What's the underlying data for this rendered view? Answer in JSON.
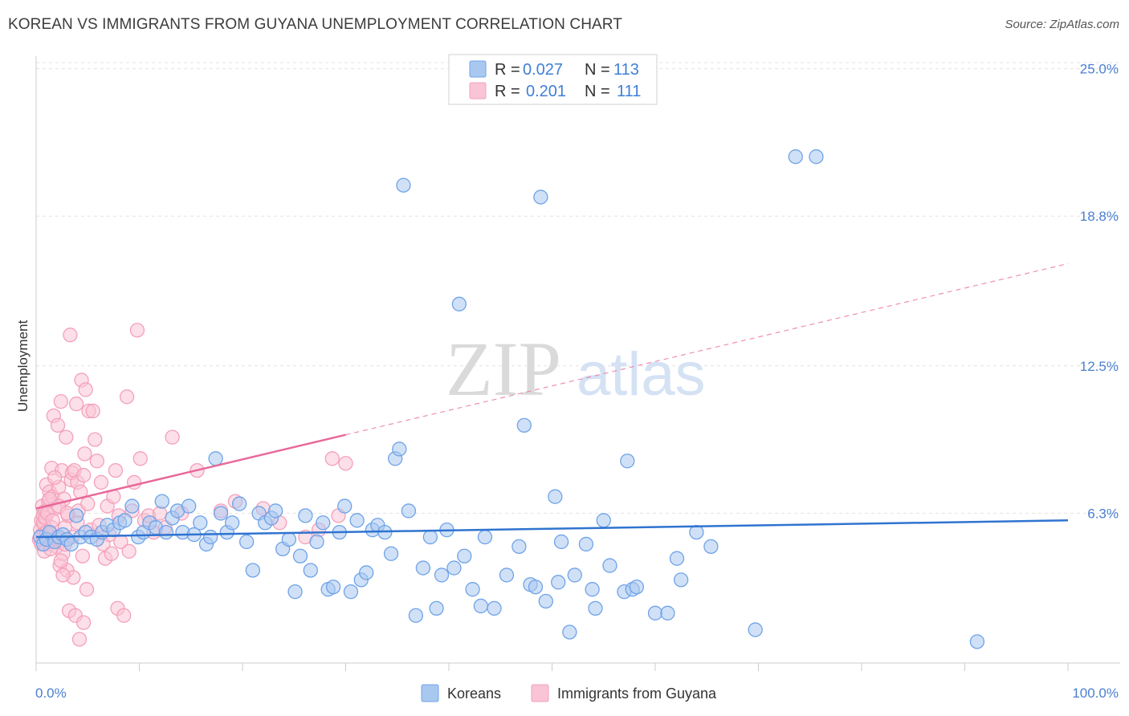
{
  "title": "KOREAN VS IMMIGRANTS FROM GUYANA UNEMPLOYMENT CORRELATION CHART",
  "source": "Source: ZipAtlas.com",
  "watermark": {
    "zip": "ZIP",
    "atlas": "atlas"
  },
  "legend": {
    "r_label": "R =",
    "n_label": "N =",
    "rows": [
      {
        "r": "0.027",
        "n": "113"
      },
      {
        "r": "0.201",
        "n": "111"
      }
    ]
  },
  "chart_data": {
    "type": "scatter",
    "title": "KOREAN VS IMMIGRANTS FROM GUYANA UNEMPLOYMENT CORRELATION CHART",
    "xlabel": "",
    "ylabel": "Unemployment",
    "xlim": [
      0,
      100
    ],
    "ylim": [
      0,
      26
    ],
    "x_ticks": [
      "0.0%",
      "100.0%"
    ],
    "y_ticks": [
      {
        "value": 6.3,
        "label": "6.3%"
      },
      {
        "value": 12.5,
        "label": "12.5%"
      },
      {
        "value": 18.8,
        "label": "18.8%"
      },
      {
        "value": 25.0,
        "label": "25.0%"
      }
    ],
    "legend_position": "top-center",
    "series": [
      {
        "name": "Koreans",
        "color": "#6fa3e8",
        "trend": {
          "x0": 0,
          "y0": 5.3,
          "x1": 100,
          "y1": 6.0,
          "dashed_from": null
        },
        "points": [
          [
            0.4,
            5.3
          ],
          [
            0.7,
            5.0
          ],
          [
            1.0,
            5.2
          ],
          [
            1.3,
            5.5
          ],
          [
            1.8,
            5.1
          ],
          [
            2.2,
            5.3
          ],
          [
            2.6,
            5.4
          ],
          [
            3.0,
            5.2
          ],
          [
            3.4,
            5.0
          ],
          [
            3.9,
            6.2
          ],
          [
            4.3,
            5.3
          ],
          [
            4.8,
            5.5
          ],
          [
            5.3,
            5.3
          ],
          [
            5.9,
            5.2
          ],
          [
            6.4,
            5.5
          ],
          [
            6.9,
            5.8
          ],
          [
            7.5,
            5.6
          ],
          [
            8.1,
            5.9
          ],
          [
            8.6,
            6.0
          ],
          [
            9.3,
            6.6
          ],
          [
            9.9,
            5.3
          ],
          [
            10.4,
            5.5
          ],
          [
            11.0,
            5.9
          ],
          [
            11.6,
            5.7
          ],
          [
            12.2,
            6.8
          ],
          [
            12.6,
            5.5
          ],
          [
            13.2,
            6.1
          ],
          [
            13.7,
            6.4
          ],
          [
            14.2,
            5.5
          ],
          [
            14.8,
            6.6
          ],
          [
            15.3,
            5.4
          ],
          [
            15.9,
            5.9
          ],
          [
            16.5,
            5.0
          ],
          [
            16.9,
            5.3
          ],
          [
            17.4,
            8.6
          ],
          [
            17.9,
            6.3
          ],
          [
            18.5,
            5.5
          ],
          [
            19.0,
            5.9
          ],
          [
            19.7,
            6.7
          ],
          [
            20.4,
            5.1
          ],
          [
            21.0,
            3.9
          ],
          [
            21.6,
            6.3
          ],
          [
            22.2,
            5.9
          ],
          [
            22.8,
            6.1
          ],
          [
            23.2,
            6.4
          ],
          [
            23.9,
            4.8
          ],
          [
            24.5,
            5.2
          ],
          [
            25.1,
            3.0
          ],
          [
            25.6,
            4.5
          ],
          [
            26.1,
            6.2
          ],
          [
            26.6,
            3.9
          ],
          [
            27.2,
            5.1
          ],
          [
            27.8,
            5.9
          ],
          [
            28.3,
            3.1
          ],
          [
            28.8,
            3.2
          ],
          [
            29.4,
            5.5
          ],
          [
            29.9,
            6.6
          ],
          [
            30.5,
            3.0
          ],
          [
            31.1,
            6.0
          ],
          [
            31.5,
            3.5
          ],
          [
            32.0,
            3.8
          ],
          [
            32.6,
            5.6
          ],
          [
            33.1,
            5.8
          ],
          [
            33.8,
            5.5
          ],
          [
            34.4,
            4.6
          ],
          [
            34.8,
            8.6
          ],
          [
            35.2,
            9.0
          ],
          [
            35.6,
            20.1
          ],
          [
            36.1,
            6.4
          ],
          [
            36.8,
            2.0
          ],
          [
            37.5,
            4.0
          ],
          [
            38.2,
            5.3
          ],
          [
            38.8,
            2.3
          ],
          [
            39.3,
            3.7
          ],
          [
            39.8,
            5.6
          ],
          [
            40.5,
            4.0
          ],
          [
            41.0,
            15.1
          ],
          [
            41.5,
            4.5
          ],
          [
            42.3,
            3.1
          ],
          [
            43.1,
            2.4
          ],
          [
            43.5,
            5.3
          ],
          [
            44.4,
            2.3
          ],
          [
            45.6,
            3.7
          ],
          [
            46.8,
            4.9
          ],
          [
            47.3,
            10.0
          ],
          [
            47.9,
            3.3
          ],
          [
            48.4,
            3.2
          ],
          [
            48.9,
            19.6
          ],
          [
            49.4,
            2.6
          ],
          [
            50.3,
            7.0
          ],
          [
            50.6,
            3.4
          ],
          [
            50.9,
            5.1
          ],
          [
            51.7,
            1.3
          ],
          [
            52.2,
            3.7
          ],
          [
            53.3,
            5.0
          ],
          [
            53.9,
            3.1
          ],
          [
            54.2,
            2.3
          ],
          [
            55.0,
            6.0
          ],
          [
            55.6,
            4.1
          ],
          [
            57.0,
            3.0
          ],
          [
            57.3,
            8.5
          ],
          [
            57.8,
            3.1
          ],
          [
            58.2,
            3.2
          ],
          [
            60.0,
            2.1
          ],
          [
            61.2,
            2.1
          ],
          [
            62.1,
            4.4
          ],
          [
            62.5,
            3.5
          ],
          [
            65.4,
            4.9
          ],
          [
            69.7,
            1.4
          ],
          [
            73.6,
            21.3
          ],
          [
            75.6,
            21.3
          ],
          [
            91.2,
            0.9
          ],
          [
            64.0,
            5.5
          ]
        ]
      },
      {
        "name": "Immigrants from Guyana",
        "color": "#f4a0bb",
        "trend": {
          "x0": 0,
          "y0": 6.5,
          "x1": 30,
          "y1": 9.6,
          "dashed_from": 30,
          "dashed_x1": 100,
          "dashed_y1": 16.8
        },
        "points": [
          [
            0.3,
            5.2
          ],
          [
            0.4,
            5.6
          ],
          [
            0.5,
            6.0
          ],
          [
            0.6,
            6.6
          ],
          [
            0.7,
            6.2
          ],
          [
            0.8,
            5.8
          ],
          [
            0.9,
            6.4
          ],
          [
            1.0,
            7.5
          ],
          [
            1.1,
            5.0
          ],
          [
            1.2,
            6.8
          ],
          [
            1.3,
            7.2
          ],
          [
            1.4,
            5.5
          ],
          [
            1.5,
            8.2
          ],
          [
            1.6,
            7.0
          ],
          [
            1.7,
            10.4
          ],
          [
            1.8,
            6.5
          ],
          [
            1.9,
            5.3
          ],
          [
            2.0,
            4.9
          ],
          [
            2.1,
            10.0
          ],
          [
            2.2,
            7.4
          ],
          [
            2.3,
            4.1
          ],
          [
            2.4,
            11.0
          ],
          [
            2.5,
            8.1
          ],
          [
            2.6,
            4.6
          ],
          [
            2.7,
            6.9
          ],
          [
            2.8,
            5.7
          ],
          [
            2.9,
            9.5
          ],
          [
            3.0,
            3.9
          ],
          [
            3.1,
            6.2
          ],
          [
            3.2,
            2.2
          ],
          [
            3.3,
            13.8
          ],
          [
            3.4,
            7.7
          ],
          [
            3.5,
            8.0
          ],
          [
            3.6,
            3.6
          ],
          [
            3.7,
            8.1
          ],
          [
            3.8,
            2.0
          ],
          [
            3.9,
            10.9
          ],
          [
            4.0,
            7.6
          ],
          [
            4.1,
            6.4
          ],
          [
            4.2,
            1.0
          ],
          [
            4.3,
            7.2
          ],
          [
            4.4,
            11.9
          ],
          [
            4.5,
            4.5
          ],
          [
            4.6,
            1.7
          ],
          [
            4.7,
            8.8
          ],
          [
            4.8,
            11.5
          ],
          [
            4.9,
            3.1
          ],
          [
            5.0,
            6.7
          ],
          [
            5.1,
            10.6
          ],
          [
            5.3,
            5.6
          ],
          [
            5.5,
            10.6
          ],
          [
            5.7,
            9.4
          ],
          [
            5.9,
            8.5
          ],
          [
            6.1,
            5.8
          ],
          [
            6.3,
            7.6
          ],
          [
            6.5,
            5.0
          ],
          [
            6.7,
            4.4
          ],
          [
            6.9,
            6.6
          ],
          [
            7.1,
            5.4
          ],
          [
            7.3,
            4.6
          ],
          [
            7.5,
            7.0
          ],
          [
            7.7,
            8.1
          ],
          [
            7.9,
            2.3
          ],
          [
            8.0,
            6.2
          ],
          [
            8.2,
            5.1
          ],
          [
            8.5,
            2.0
          ],
          [
            8.8,
            11.2
          ],
          [
            9.0,
            4.7
          ],
          [
            9.3,
            6.4
          ],
          [
            9.5,
            7.6
          ],
          [
            9.8,
            14.0
          ],
          [
            10.1,
            8.6
          ],
          [
            10.5,
            6.0
          ],
          [
            10.9,
            6.2
          ],
          [
            11.4,
            5.5
          ],
          [
            12.0,
            6.3
          ],
          [
            12.5,
            5.7
          ],
          [
            13.2,
            9.5
          ],
          [
            14.1,
            6.3
          ],
          [
            15.6,
            8.1
          ],
          [
            17.9,
            6.4
          ],
          [
            19.3,
            6.8
          ],
          [
            22.0,
            6.5
          ],
          [
            23.6,
            5.9
          ],
          [
            26.1,
            5.3
          ],
          [
            27.4,
            5.6
          ],
          [
            29.3,
            6.2
          ],
          [
            28.7,
            8.6
          ],
          [
            30.0,
            8.4
          ],
          [
            0.5,
            5.0
          ],
          [
            0.6,
            5.4
          ],
          [
            0.7,
            5.9
          ],
          [
            0.8,
            4.7
          ],
          [
            0.9,
            6.1
          ],
          [
            1.0,
            5.5
          ],
          [
            1.1,
            6.3
          ],
          [
            1.2,
            5.1
          ],
          [
            1.3,
            6.9
          ],
          [
            1.4,
            4.8
          ],
          [
            1.5,
            5.7
          ],
          [
            1.6,
            6.0
          ],
          [
            1.8,
            7.8
          ],
          [
            2.0,
            5.2
          ],
          [
            2.2,
            6.6
          ],
          [
            2.4,
            4.3
          ],
          [
            2.6,
            3.7
          ],
          [
            2.8,
            5.0
          ],
          [
            3.0,
            6.3
          ],
          [
            3.5,
            5.3
          ],
          [
            4.0,
            5.9
          ],
          [
            4.6,
            7.9
          ]
        ]
      }
    ]
  },
  "bottom_legend": [
    {
      "label": "Koreans"
    },
    {
      "label": "Immigrants from Guyana"
    }
  ],
  "colors": {
    "blue_fill": "#a9c8f0",
    "blue_stroke": "#6fa3e8",
    "blue_line": "#2f74d0",
    "pink_fill": "#f9c4d5",
    "pink_stroke": "#f4a0bb",
    "pink_line": "#e8689a"
  }
}
